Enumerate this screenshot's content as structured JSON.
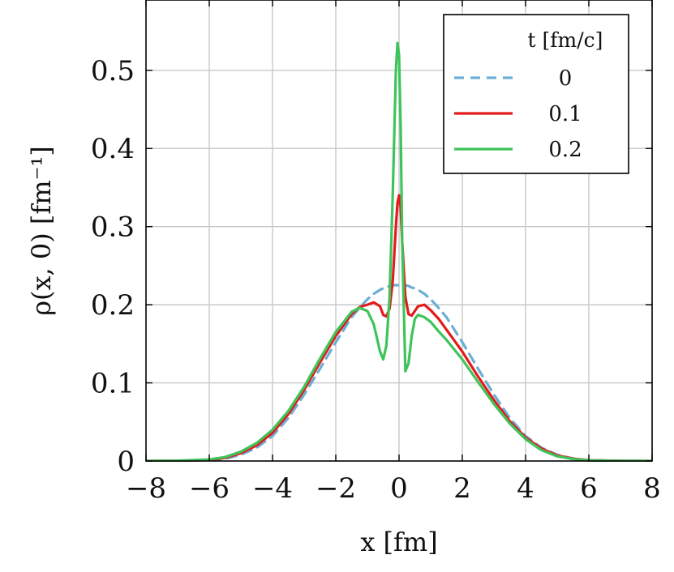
{
  "chart_data": {
    "type": "line",
    "xlabel": "x [fm]",
    "ylabel": "ρ(x, 0) [fm⁻¹]",
    "xlim": [
      -8,
      8
    ],
    "ylim": [
      0,
      0.59
    ],
    "x_ticks": [
      -8,
      -6,
      -4,
      -2,
      0,
      2,
      4,
      6,
      8
    ],
    "x_tick_labels": [
      "−8",
      "−6",
      "−4",
      "−2",
      "0",
      "2",
      "4",
      "6",
      "8"
    ],
    "y_ticks": [
      0,
      0.1,
      0.2,
      0.3,
      0.4,
      0.5
    ],
    "y_tick_labels": [
      "0",
      "0.1",
      "0.2",
      "0.3",
      "0.4",
      "0.5"
    ],
    "grid": true,
    "legend": {
      "title": "t [fm/c]",
      "placement": "top-right"
    },
    "x": [
      -8,
      -7,
      -6,
      -5.5,
      -5,
      -4.5,
      -4,
      -3.5,
      -3,
      -2.5,
      -2,
      -1.5,
      -1.25,
      -1,
      -0.8,
      -0.6,
      -0.5,
      -0.4,
      -0.3,
      -0.2,
      -0.1,
      -0.05,
      0,
      0.05,
      0.1,
      0.2,
      0.3,
      0.4,
      0.5,
      0.6,
      0.8,
      1,
      1.25,
      1.5,
      2,
      2.5,
      3,
      3.5,
      4,
      4.5,
      5,
      5.5,
      6,
      7,
      8
    ],
    "series": [
      {
        "name": "0",
        "color": "#6baed6",
        "dash": "dashed",
        "values": [
          0.0,
          0.0002,
          0.001,
          0.003,
          0.008,
          0.017,
          0.032,
          0.055,
          0.085,
          0.118,
          0.152,
          0.184,
          0.196,
          0.207,
          0.214,
          0.219,
          0.221,
          0.222,
          0.224,
          0.225,
          0.225,
          0.225,
          0.225,
          0.225,
          0.225,
          0.225,
          0.224,
          0.222,
          0.221,
          0.219,
          0.214,
          0.207,
          0.196,
          0.184,
          0.152,
          0.118,
          0.085,
          0.055,
          0.032,
          0.017,
          0.008,
          0.003,
          0.001,
          0.0002,
          0.0
        ]
      },
      {
        "name": "0.1",
        "color": "#e41a1c",
        "dash": "solid",
        "values": [
          0.0,
          0.0003,
          0.0015,
          0.004,
          0.01,
          0.02,
          0.036,
          0.06,
          0.091,
          0.126,
          0.16,
          0.188,
          0.197,
          0.2,
          0.203,
          0.198,
          0.187,
          0.185,
          0.195,
          0.23,
          0.3,
          0.33,
          0.34,
          0.325,
          0.28,
          0.21,
          0.188,
          0.186,
          0.192,
          0.198,
          0.2,
          0.193,
          0.182,
          0.168,
          0.14,
          0.108,
          0.078,
          0.051,
          0.03,
          0.016,
          0.007,
          0.003,
          0.001,
          0.0002,
          0.0
        ]
      },
      {
        "name": "0.2",
        "color": "#3ec45a",
        "dash": "solid",
        "values": [
          0.0,
          0.0004,
          0.002,
          0.005,
          0.012,
          0.023,
          0.04,
          0.064,
          0.095,
          0.131,
          0.165,
          0.191,
          0.196,
          0.192,
          0.175,
          0.14,
          0.13,
          0.148,
          0.21,
          0.34,
          0.5,
          0.535,
          0.52,
          0.43,
          0.28,
          0.115,
          0.125,
          0.16,
          0.182,
          0.187,
          0.184,
          0.178,
          0.166,
          0.155,
          0.13,
          0.101,
          0.073,
          0.048,
          0.028,
          0.014,
          0.006,
          0.0025,
          0.0008,
          0.0001,
          0.0
        ]
      }
    ]
  }
}
